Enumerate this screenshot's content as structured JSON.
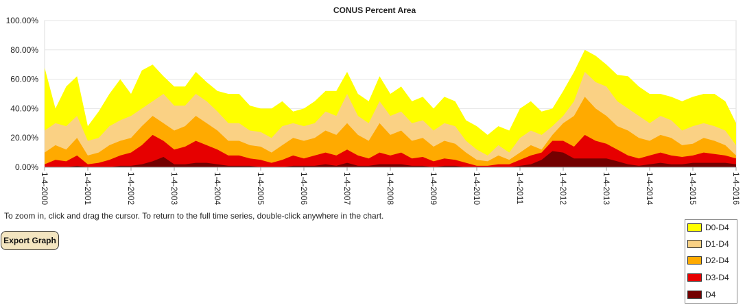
{
  "chart_data": {
    "type": "area",
    "title": "CONUS Percent Area",
    "xlabel": "",
    "ylabel": "",
    "ylim": [
      0,
      100
    ],
    "xlim": [
      "1-4-2000",
      "1-4-2016"
    ],
    "y_tick_labels": [
      "0.00%",
      "20.00%",
      "40.00%",
      "60.00%",
      "80.00%",
      "100.00%"
    ],
    "x_tick_labels": [
      "1-4-2000",
      "1-4-2001",
      "1-4-2002",
      "1-4-2003",
      "1-4-2004",
      "1-4-2005",
      "1-4-2006",
      "1-4-2007",
      "1-4-2008",
      "1-4-2009",
      "1-4-2010",
      "1-4-2011",
      "1-4-2012",
      "1-4-2013",
      "1-4-2014",
      "1-4-2015",
      "1-4-2016"
    ],
    "grid": true,
    "legend_position": "bottom-right",
    "x": [
      2000.0,
      2000.25,
      2000.5,
      2000.75,
      2001.0,
      2001.25,
      2001.5,
      2001.75,
      2002.0,
      2002.25,
      2002.5,
      2002.75,
      2003.0,
      2003.25,
      2003.5,
      2003.75,
      2004.0,
      2004.25,
      2004.5,
      2004.75,
      2005.0,
      2005.25,
      2005.5,
      2005.75,
      2006.0,
      2006.25,
      2006.5,
      2006.75,
      2007.0,
      2007.25,
      2007.5,
      2007.75,
      2008.0,
      2008.25,
      2008.5,
      2008.75,
      2009.0,
      2009.25,
      2009.5,
      2009.75,
      2010.0,
      2010.25,
      2010.5,
      2010.75,
      2011.0,
      2011.25,
      2011.5,
      2011.75,
      2012.0,
      2012.25,
      2012.5,
      2012.75,
      2013.0,
      2013.25,
      2013.5,
      2013.75,
      2014.0,
      2014.25,
      2014.5,
      2014.75,
      2015.0,
      2015.25,
      2015.5,
      2015.75,
      2016.0
    ],
    "series": [
      {
        "name": "D0-D4",
        "color": "#ffff00",
        "values": [
          68,
          40,
          55,
          62,
          28,
          38,
          50,
          60,
          50,
          66,
          70,
          62,
          55,
          55,
          65,
          58,
          52,
          50,
          50,
          42,
          40,
          40,
          45,
          38,
          40,
          45,
          52,
          52,
          65,
          50,
          45,
          62,
          50,
          55,
          45,
          48,
          40,
          48,
          45,
          32,
          28,
          22,
          28,
          25,
          40,
          45,
          38,
          40,
          52,
          65,
          80,
          76,
          70,
          63,
          62,
          55,
          50,
          50,
          48,
          45,
          48,
          50,
          50,
          45,
          30
        ]
      },
      {
        "name": "D1-D4",
        "color": "#fad184",
        "values": [
          25,
          30,
          28,
          35,
          18,
          20,
          28,
          32,
          35,
          40,
          45,
          50,
          42,
          42,
          50,
          45,
          38,
          30,
          30,
          25,
          24,
          20,
          28,
          30,
          28,
          30,
          38,
          35,
          50,
          35,
          30,
          45,
          35,
          38,
          30,
          32,
          25,
          30,
          28,
          18,
          12,
          8,
          15,
          10,
          20,
          25,
          22,
          28,
          35,
          45,
          65,
          58,
          55,
          45,
          40,
          35,
          30,
          35,
          32,
          25,
          28,
          30,
          28,
          25,
          15
        ]
      },
      {
        "name": "D2-D4",
        "color": "#ffaa00",
        "values": [
          10,
          15,
          12,
          20,
          8,
          10,
          15,
          18,
          20,
          28,
          35,
          30,
          25,
          28,
          35,
          30,
          25,
          18,
          18,
          15,
          14,
          10,
          15,
          20,
          18,
          20,
          25,
          22,
          30,
          22,
          18,
          30,
          22,
          25,
          18,
          20,
          14,
          18,
          16,
          10,
          5,
          4,
          8,
          5,
          10,
          15,
          12,
          22,
          30,
          35,
          48,
          40,
          35,
          28,
          25,
          20,
          18,
          22,
          20,
          15,
          16,
          20,
          18,
          15,
          8
        ]
      },
      {
        "name": "D3-D4",
        "color": "#e60000",
        "values": [
          2,
          5,
          4,
          8,
          2,
          3,
          5,
          8,
          10,
          15,
          22,
          18,
          12,
          14,
          18,
          15,
          12,
          8,
          8,
          6,
          5,
          3,
          5,
          8,
          6,
          8,
          10,
          8,
          12,
          8,
          6,
          10,
          8,
          10,
          6,
          7,
          4,
          6,
          5,
          3,
          1,
          1,
          2,
          2,
          5,
          8,
          10,
          18,
          18,
          14,
          22,
          18,
          16,
          12,
          8,
          6,
          8,
          10,
          8,
          7,
          8,
          10,
          9,
          8,
          6
        ]
      },
      {
        "name": "D4",
        "color": "#730000",
        "values": [
          0,
          0,
          0,
          1,
          0,
          0,
          0,
          1,
          1,
          2,
          4,
          7,
          2,
          2,
          3,
          3,
          2,
          1,
          1,
          1,
          0,
          0,
          0,
          1,
          1,
          1,
          2,
          1,
          3,
          1,
          1,
          2,
          2,
          2,
          1,
          1,
          0,
          1,
          1,
          0,
          0,
          0,
          0,
          0,
          1,
          2,
          5,
          11,
          10,
          6,
          6,
          6,
          6,
          4,
          2,
          1,
          2,
          3,
          2,
          2,
          3,
          3,
          3,
          3,
          2
        ]
      }
    ]
  },
  "instructions": "To zoom in, click and drag the cursor. To return to the full time series, double-click anywhere in the chart.",
  "export_button_label": "Export Graph",
  "legend": [
    {
      "label": "D0-D4",
      "color": "#ffff00"
    },
    {
      "label": "D1-D4",
      "color": "#fad184"
    },
    {
      "label": "D2-D4",
      "color": "#ffaa00"
    },
    {
      "label": "D3-D4",
      "color": "#e60000"
    },
    {
      "label": "D4",
      "color": "#730000"
    }
  ]
}
